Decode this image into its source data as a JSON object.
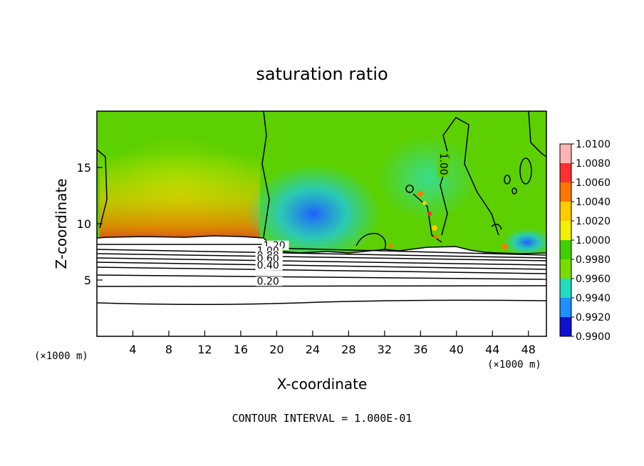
{
  "chart_data": {
    "type": "heatmap",
    "title": "saturation ratio",
    "xlabel": "X-coordinate",
    "ylabel": "Z-coordinate",
    "x_unit": "(×1000 m)",
    "x_unit_right": "(×1000 m)",
    "xlim": [
      0,
      50
    ],
    "ylim": [
      0,
      20
    ],
    "x_ticks": [
      "4",
      "8",
      "12",
      "16",
      "20",
      "24",
      "28",
      "32",
      "36",
      "40",
      "44",
      "48"
    ],
    "x_tick_values": [
      4,
      8,
      12,
      16,
      20,
      24,
      28,
      32,
      36,
      40,
      44,
      48
    ],
    "y_ticks": [
      "5",
      "10",
      "15"
    ],
    "y_tick_values": [
      5,
      10,
      15
    ],
    "colorbar": {
      "labels": [
        "1.0100",
        "1.0080",
        "1.0060",
        "1.0040",
        "1.0020",
        "1.0000",
        "0.9980",
        "0.9960",
        "0.9940",
        "0.9920",
        "0.9900"
      ],
      "colors": [
        "#ffb3b3",
        "#ff3030",
        "#ff7800",
        "#ffcc00",
        "#f0f000",
        "#40d000",
        "#78dc00",
        "#20ddc0",
        "#1e90ff",
        "#1010d0",
        "#6a0dad"
      ]
    },
    "contour_labels": [
      {
        "text": "1.00",
        "z": 15.3,
        "x": 38.5
      },
      {
        "text": "1.20",
        "z": 7.8,
        "x": 18.5
      },
      {
        "text": "1.00",
        "z": 7.3,
        "x": 17.8
      },
      {
        "text": "0.80",
        "z": 6.9,
        "x": 17.8
      },
      {
        "text": "0.60",
        "z": 6.6,
        "x": 17.8
      },
      {
        "text": "0.40",
        "z": 6.0,
        "x": 17.8
      },
      {
        "text": "0.20",
        "z": 4.6,
        "x": 17.8
      }
    ],
    "footer": "CONTOUR INTERVAL = 1.000E-01"
  },
  "colors": {
    "background_field": "#5cd000",
    "lower_region": "#ffffff"
  }
}
